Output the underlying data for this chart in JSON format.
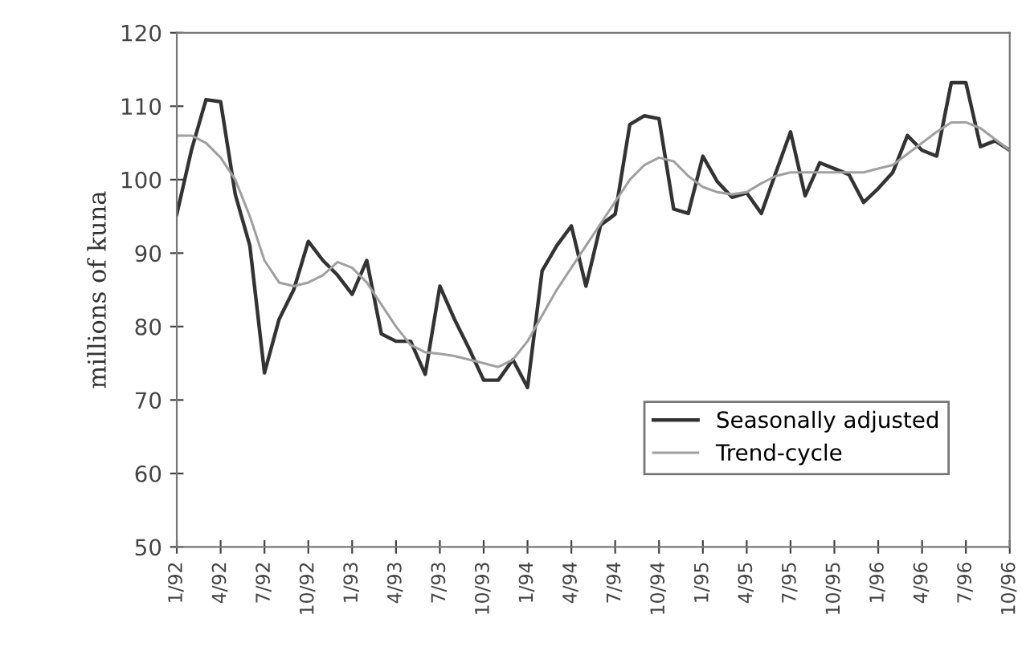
{
  "chart_data": {
    "type": "line",
    "ylabel": "millions of kuna",
    "categories": [
      "1/92",
      null,
      null,
      "4/92",
      null,
      null,
      "7/92",
      null,
      null,
      "10/92",
      null,
      null,
      "1/93",
      null,
      null,
      "4/93",
      null,
      null,
      "7/93",
      null,
      null,
      "10/93",
      null,
      null,
      "1/94",
      null,
      null,
      "4/94",
      null,
      null,
      "7/94",
      null,
      null,
      "10/94",
      null,
      null,
      "1/95",
      null,
      null,
      "4/95",
      null,
      null,
      "7/95",
      null,
      null,
      "10/95",
      null,
      null,
      "1/96",
      null,
      null,
      "4/96",
      null,
      null,
      "7/96",
      null,
      null,
      "10/96"
    ],
    "series": [
      {
        "name": "Seasonally adjusted",
        "color": "#333333",
        "values": [
          95.3,
          104,
          110.9,
          110.6,
          98,
          91,
          73.7,
          81,
          85,
          91.6,
          89,
          87,
          84.4,
          89,
          79,
          78,
          78,
          73.5,
          85.5,
          81,
          77,
          72.7,
          72.7,
          75.5,
          71.7,
          87.6,
          91,
          93.7,
          85.5,
          93.8,
          95.3,
          107.5,
          108.7,
          108.3,
          96,
          95.4,
          103.2,
          99.7,
          97.6,
          98.2,
          95.4,
          101,
          106.5,
          97.8,
          102.3,
          101.5,
          100.7,
          96.9,
          98.8,
          101,
          106,
          104,
          103.2,
          113.2,
          113.2,
          104.5,
          105.3,
          104
        ]
      },
      {
        "name": "Trend-cycle",
        "color": "#a0a0a0",
        "values": [
          106,
          106,
          105,
          103,
          100,
          95,
          89,
          86,
          85.5,
          86,
          87,
          88.8,
          88,
          86,
          83,
          80,
          77.5,
          76.5,
          76.3,
          76,
          75.5,
          75,
          74.5,
          75.5,
          78,
          81.5,
          85,
          88,
          91,
          94,
          97,
          100,
          102,
          103,
          102.5,
          100.5,
          99,
          98.3,
          98,
          98.3,
          99.5,
          100.5,
          101,
          101,
          101,
          101,
          101,
          101,
          101.5,
          102,
          103.5,
          105,
          106.5,
          107.8,
          107.8,
          107,
          105.5,
          104
        ]
      }
    ],
    "ylim": [
      50,
      120
    ],
    "yticks": [
      50,
      60,
      70,
      80,
      90,
      100,
      110,
      120
    ],
    "grid": false,
    "legend": "bottom right",
    "marker": "none",
    "line_style": "solid"
  }
}
